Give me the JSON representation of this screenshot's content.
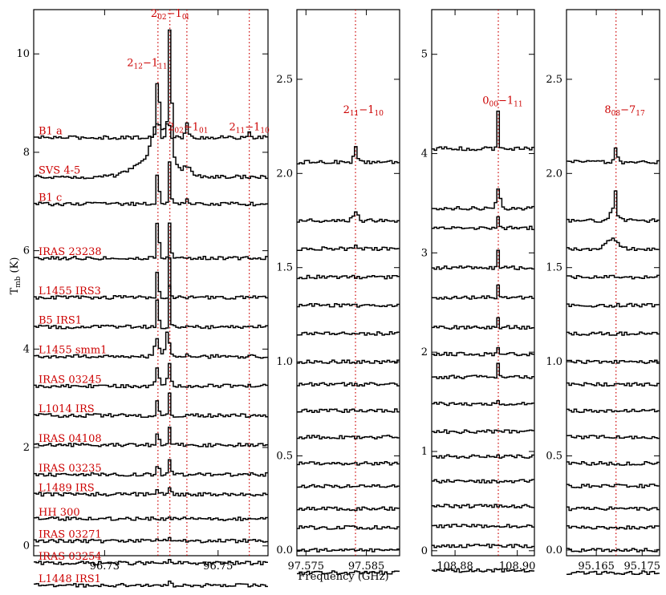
{
  "chart_data": {
    "type": "line",
    "y_axis_label_main": "T",
    "y_axis_label_sub": "mb",
    "y_axis_unit": "(K)",
    "x_axis_label": "Frequency (GHz)",
    "line_color": "#000000",
    "marker_color": "#cc0000",
    "panels": [
      {
        "id": "p1",
        "xlim": [
          96.7175,
          96.7588
        ],
        "ylim": [
          -0.2,
          10.9
        ],
        "x_ticks": [
          {
            "v": 96.73,
            "label": "96.73"
          },
          {
            "v": 96.75,
            "label": "96.75"
          }
        ],
        "y_ticks": [
          {
            "v": 0,
            "label": "0"
          },
          {
            "v": 2,
            "label": "2"
          },
          {
            "v": 4,
            "label": "4"
          },
          {
            "v": 6,
            "label": "6"
          },
          {
            "v": 8,
            "label": "8"
          },
          {
            "v": 10,
            "label": "10"
          }
        ],
        "markers": [
          96.7394,
          96.7415,
          96.7445,
          96.7555
        ],
        "annotations": [
          {
            "id": "t1",
            "x": 96.7375,
            "y": 9.75,
            "base": "2",
            "sub1": "12",
            "dash": "−1",
            "sub2": "11"
          },
          {
            "id": "t2",
            "x": 96.7415,
            "y": 10.75,
            "base": "2",
            "sub1": "02",
            "dash": "−1",
            "sub2": "0l"
          },
          {
            "id": "t3",
            "x": 96.7447,
            "y": 8.45,
            "base": "2",
            "sub1": "02",
            "dash": "−1",
            "sub2": "01"
          },
          {
            "id": "t4",
            "x": 96.7555,
            "y": 8.45,
            "base": "2",
            "sub1": "11",
            "dash": "−1",
            "sub2": "10"
          }
        ],
        "spectra": [
          {
            "name": "B1 a",
            "baseline": 8.3,
            "peaks": [
              {
                "x": 96.7394,
                "h": 1.35,
                "w": 0.00025
              },
              {
                "x": 96.7415,
                "h": 2.25,
                "w": 0.00025
              },
              {
                "x": 96.7445,
                "h": 0.3,
                "w": 0.00025
              },
              {
                "x": 96.7555,
                "h": 0.08,
                "w": 0.0003
              }
            ]
          },
          {
            "name": "SVS 4-5",
            "baseline": 7.5,
            "peaks": [
              {
                "x": 96.7392,
                "h": 0.75,
                "w": 0.0009
              },
              {
                "x": 96.7413,
                "h": 0.8,
                "w": 0.0007
              },
              {
                "x": 96.7445,
                "h": 0.18,
                "w": 0.0007
              },
              {
                "x": 96.7385,
                "h": 0.35,
                "w": 0.003
              }
            ]
          },
          {
            "name": "B1 c",
            "baseline": 6.95,
            "peaks": [
              {
                "x": 96.7394,
                "h": 0.8,
                "w": 0.0002
              },
              {
                "x": 96.7415,
                "h": 0.85,
                "w": 0.0002
              },
              {
                "x": 96.7445,
                "h": 0.08,
                "w": 0.0002
              }
            ]
          },
          {
            "name": "IRAS 23238",
            "baseline": 5.85,
            "peaks": [
              {
                "x": 96.7394,
                "h": 0.95,
                "w": 0.0002
              },
              {
                "x": 96.7415,
                "h": 0.75,
                "w": 0.0002
              }
            ]
          },
          {
            "name": "L1455 IRS3",
            "baseline": 5.05,
            "peaks": [
              {
                "x": 96.7394,
                "h": 0.85,
                "w": 0.00015
              },
              {
                "x": 96.7415,
                "h": 0.85,
                "w": 0.00015
              }
            ]
          },
          {
            "name": "B5 IRS1",
            "baseline": 4.45,
            "peaks": [
              {
                "x": 96.7394,
                "h": 0.9,
                "w": 0.00015
              },
              {
                "x": 96.7415,
                "h": 0.85,
                "w": 0.00015
              }
            ]
          },
          {
            "name": "L1455 smm1",
            "baseline": 3.85,
            "peaks": [
              {
                "x": 96.7392,
                "h": 0.35,
                "w": 0.0004
              },
              {
                "x": 96.7411,
                "h": 0.55,
                "w": 0.0003
              },
              {
                "x": 96.7445,
                "h": 0.05,
                "w": 0.0002
              }
            ]
          },
          {
            "name": "IRAS 03245",
            "baseline": 3.25,
            "peaks": [
              {
                "x": 96.7393,
                "h": 0.35,
                "w": 0.0003
              },
              {
                "x": 96.7414,
                "h": 0.45,
                "w": 0.0003
              }
            ]
          },
          {
            "name": "L1014 IRS",
            "baseline": 2.65,
            "peaks": [
              {
                "x": 96.7394,
                "h": 0.45,
                "w": 0.00015
              },
              {
                "x": 96.7415,
                "h": 0.45,
                "w": 0.00015
              }
            ]
          },
          {
            "name": "IRAS 04108",
            "baseline": 2.05,
            "peaks": [
              {
                "x": 96.7394,
                "h": 0.25,
                "w": 0.0002
              },
              {
                "x": 96.7415,
                "h": 0.4,
                "w": 0.00015
              }
            ]
          },
          {
            "name": "IRAS 03235",
            "baseline": 1.45,
            "peaks": [
              {
                "x": 96.7394,
                "h": 0.25,
                "w": 0.0002
              },
              {
                "x": 96.7415,
                "h": 0.3,
                "w": 0.0002
              }
            ]
          },
          {
            "name": "L1489 IRS",
            "baseline": 1.05,
            "peaks": [
              {
                "x": 96.7394,
                "h": 0.15,
                "w": 0.0002
              },
              {
                "x": 96.7415,
                "h": 0.1,
                "w": 0.0002
              }
            ]
          },
          {
            "name": "HH 300",
            "baseline": 0.55,
            "peaks": [
              {
                "x": 96.7415,
                "h": 0.05,
                "w": 0.0002
              }
            ]
          },
          {
            "name": "IRAS 03271",
            "baseline": 0.1,
            "peaks": [
              {
                "x": 96.7394,
                "h": 0.06,
                "w": 0.0002
              },
              {
                "x": 96.7415,
                "h": 0.06,
                "w": 0.0002
              }
            ]
          },
          {
            "name": "IRAS 03254",
            "baseline": -0.35,
            "peaks": [
              {
                "x": 96.7415,
                "h": 0.04,
                "w": 0.0002
              }
            ]
          },
          {
            "name": "L1448 IRS1",
            "baseline": -0.8,
            "peaks": [
              {
                "x": 96.7415,
                "h": 0.1,
                "w": 0.0002
              }
            ]
          }
        ]
      },
      {
        "id": "p2",
        "xlim": [
          97.5735,
          97.5905
        ],
        "ylim": [
          -0.03,
          2.87
        ],
        "x_ticks": [
          {
            "v": 97.575,
            "label": "97.575"
          },
          {
            "v": 97.585,
            "label": "97.585"
          }
        ],
        "y_ticks": [
          {
            "v": 0,
            "label": "0.0"
          },
          {
            "v": 0.5,
            "label": "0.5"
          },
          {
            "v": 1.0,
            "label": "1.0"
          },
          {
            "v": 1.5,
            "label": "1.5"
          },
          {
            "v": 2.0,
            "label": "2.0"
          },
          {
            "v": 2.5,
            "label": "2.5"
          }
        ],
        "markers": [
          97.5832
        ],
        "annotations": [
          {
            "id": "t1",
            "x": 97.5845,
            "y": 2.32,
            "base": "2",
            "sub1": "11",
            "dash": "−1",
            "sub2": "10"
          }
        ],
        "spectra": [
          {
            "baseline": 2.06,
            "peaks": [
              {
                "x": 97.5832,
                "h": 0.09,
                "w": 0.00025
              }
            ]
          },
          {
            "baseline": 1.75,
            "peaks": [
              {
                "x": 97.5832,
                "h": 0.04,
                "w": 0.0004
              }
            ]
          },
          {
            "baseline": 1.6,
            "peaks": [
              {
                "x": 97.5832,
                "h": 0.02,
                "w": 0.0003
              }
            ]
          },
          {
            "baseline": 1.45,
            "peaks": []
          },
          {
            "baseline": 1.3,
            "peaks": []
          },
          {
            "baseline": 1.15,
            "peaks": []
          },
          {
            "baseline": 1.0,
            "peaks": []
          },
          {
            "baseline": 0.88,
            "peaks": []
          },
          {
            "baseline": 0.74,
            "peaks": []
          },
          {
            "baseline": 0.6,
            "peaks": []
          },
          {
            "baseline": 0.46,
            "peaks": []
          },
          {
            "baseline": 0.34,
            "peaks": []
          },
          {
            "baseline": 0.22,
            "peaks": []
          },
          {
            "baseline": 0.12,
            "peaks": []
          },
          {
            "baseline": 0.0,
            "peaks": []
          },
          {
            "baseline": -0.12,
            "peaks": []
          }
        ]
      },
      {
        "id": "p3",
        "xlim": [
          108.8725,
          108.9055
        ],
        "ylim": [
          -0.05,
          5.45
        ],
        "x_ticks": [
          {
            "v": 108.88,
            "label": "108.88"
          },
          {
            "v": 108.9,
            "label": "108.90"
          }
        ],
        "y_ticks": [
          {
            "v": 0,
            "label": "0"
          },
          {
            "v": 1,
            "label": "1"
          },
          {
            "v": 2,
            "label": "2"
          },
          {
            "v": 3,
            "label": "3"
          },
          {
            "v": 4,
            "label": "4"
          },
          {
            "v": 5,
            "label": "5"
          }
        ],
        "markers": [
          108.8939
        ],
        "annotations": [
          {
            "id": "t1",
            "x": 108.8953,
            "y": 4.5,
            "base": "0",
            "sub1": "00",
            "dash": "−1",
            "sub2": "11"
          }
        ],
        "spectra": [
          {
            "baseline": 4.05,
            "peaks": [
              {
                "x": 108.8939,
                "h": 0.4,
                "w": 0.0003
              }
            ]
          },
          {
            "baseline": 3.45,
            "peaks": [
              {
                "x": 108.8939,
                "h": 0.2,
                "w": 0.0006
              }
            ]
          },
          {
            "baseline": 3.25,
            "peaks": [
              {
                "x": 108.8939,
                "h": 0.12,
                "w": 0.0002
              }
            ]
          },
          {
            "baseline": 2.85,
            "peaks": [
              {
                "x": 108.8939,
                "h": 0.18,
                "w": 0.0002
              }
            ]
          },
          {
            "baseline": 2.55,
            "peaks": [
              {
                "x": 108.8939,
                "h": 0.12,
                "w": 0.0002
              }
            ]
          },
          {
            "baseline": 2.25,
            "peaks": [
              {
                "x": 108.8939,
                "h": 0.12,
                "w": 0.0002
              }
            ]
          },
          {
            "baseline": 1.98,
            "peaks": [
              {
                "x": 108.8939,
                "h": 0.08,
                "w": 0.0002
              }
            ]
          },
          {
            "baseline": 1.75,
            "peaks": [
              {
                "x": 108.8939,
                "h": 0.15,
                "w": 0.0002
              }
            ]
          },
          {
            "baseline": 1.48,
            "peaks": [
              {
                "x": 108.8939,
                "h": 0.03,
                "w": 0.0002
              }
            ]
          },
          {
            "baseline": 1.2,
            "peaks": []
          },
          {
            "baseline": 0.95,
            "peaks": []
          },
          {
            "baseline": 0.7,
            "peaks": []
          },
          {
            "baseline": 0.45,
            "peaks": []
          },
          {
            "baseline": 0.25,
            "peaks": []
          },
          {
            "baseline": 0.05,
            "peaks": []
          },
          {
            "baseline": -0.2,
            "peaks": []
          }
        ]
      },
      {
        "id": "p4",
        "xlim": [
          95.1585,
          95.1788
        ],
        "ylim": [
          -0.03,
          2.87
        ],
        "x_ticks": [
          {
            "v": 95.165,
            "label": "95.165"
          },
          {
            "v": 95.175,
            "label": "95.175"
          }
        ],
        "y_ticks": [
          {
            "v": 0,
            "label": "0.0"
          },
          {
            "v": 0.5,
            "label": "0.5"
          },
          {
            "v": 1.0,
            "label": "1.0"
          },
          {
            "v": 1.5,
            "label": "1.5"
          },
          {
            "v": 2.0,
            "label": "2.0"
          },
          {
            "v": 2.5,
            "label": "2.5"
          }
        ],
        "markers": [
          95.1693
        ],
        "annotations": [
          {
            "id": "t1",
            "x": 95.1712,
            "y": 2.32,
            "base": "8",
            "sub1": "08",
            "dash": "−7",
            "sub2": "17"
          }
        ],
        "spectra": [
          {
            "baseline": 2.06,
            "peaks": [
              {
                "x": 95.1693,
                "h": 0.07,
                "w": 0.0003
              }
            ]
          },
          {
            "baseline": 1.75,
            "peaks": [
              {
                "x": 95.1691,
                "h": 0.12,
                "w": 0.0002
              },
              {
                "x": 95.1688,
                "h": 0.05,
                "w": 0.0009
              }
            ]
          },
          {
            "baseline": 1.6,
            "peaks": [
              {
                "x": 95.1684,
                "h": 0.05,
                "w": 0.0012
              }
            ]
          },
          {
            "baseline": 1.45,
            "peaks": []
          },
          {
            "baseline": 1.3,
            "peaks": []
          },
          {
            "baseline": 1.15,
            "peaks": []
          },
          {
            "baseline": 1.0,
            "peaks": []
          },
          {
            "baseline": 0.88,
            "peaks": []
          },
          {
            "baseline": 0.74,
            "peaks": []
          },
          {
            "baseline": 0.6,
            "peaks": []
          },
          {
            "baseline": 0.46,
            "peaks": []
          },
          {
            "baseline": 0.34,
            "peaks": []
          },
          {
            "baseline": 0.22,
            "peaks": []
          },
          {
            "baseline": 0.12,
            "peaks": []
          },
          {
            "baseline": 0.0,
            "peaks": []
          },
          {
            "baseline": -0.12,
            "peaks": []
          }
        ]
      }
    ]
  }
}
